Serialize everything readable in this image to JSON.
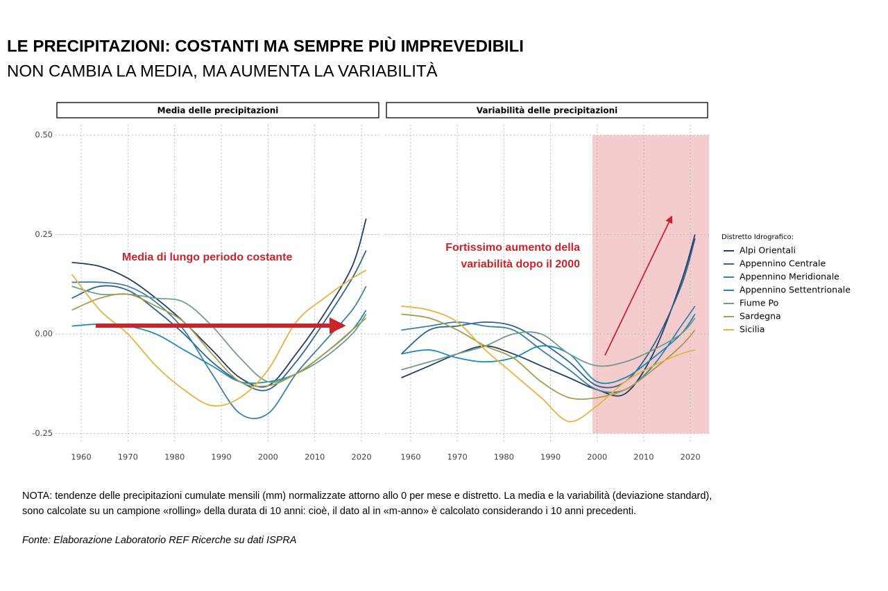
{
  "title": "LE PRECIPITAZIONI: COSTANTI MA SEMPRE PIÙ IMPREVEDIBILI",
  "subtitle": "NON CAMBIA LA MEDIA, MA AUMENTA LA VARIABILITÀ",
  "note": [
    "NOTA: tendenze delle precipitazioni cumulate mensili (mm) normalizzate attorno allo 0 per mese e distretto. La media e la variabilità (deviazione standard),",
    "sono calcolate su un campione «rolling» della durata di 10 anni: cioè, il dato al in «m-anno» è calcolato considerando i 10 anni precedenti."
  ],
  "source": "Fonte: Elaborazione Laboratorio REF Ricerche su dati ISPRA",
  "chart_data": [
    {
      "type": "line",
      "title": "Media delle precipitazioni",
      "legend_title": "Distretto Idrografico:",
      "annotation": [
        "Media di lungo periodo costante"
      ],
      "x": [
        1958,
        1964,
        1970,
        1976,
        1982,
        1988,
        1994,
        2000,
        2006,
        2012,
        2018,
        2021
      ],
      "xlim": [
        1954.5,
        2024
      ],
      "xticks": [
        1960,
        1970,
        1980,
        1990,
        2000,
        2010,
        2020
      ],
      "ylim": [
        -0.275,
        0.54
      ],
      "yticks": [
        {
          "value": -0.25,
          "label": "-0.25"
        },
        {
          "value": 0,
          "label": "0.00"
        },
        {
          "value": 0.25,
          "label": "0.25"
        },
        {
          "value": 0.5,
          "label": "0.50"
        }
      ],
      "grid": true,
      "series": [
        {
          "name": "Alpi Orientali",
          "color": "#1f3f66",
          "values": [
            0.18,
            0.17,
            0.14,
            0.09,
            0.03,
            -0.04,
            -0.11,
            -0.13,
            -0.05,
            0.05,
            0.17,
            0.29
          ]
        },
        {
          "name": "Appennino Centrale",
          "color": "#2c6391",
          "values": [
            0.09,
            0.12,
            0.11,
            0.06,
            0.0,
            -0.07,
            -0.12,
            -0.14,
            -0.07,
            0.03,
            0.14,
            0.21
          ]
        },
        {
          "name": "Appennino Meridionale",
          "color": "#3a7fa8",
          "values": [
            0.13,
            0.13,
            0.12,
            0.08,
            0.01,
            -0.1,
            -0.2,
            -0.2,
            -0.1,
            -0.02,
            0.06,
            0.12
          ]
        },
        {
          "name": "Appennino Settentrionale",
          "color": "#1a8ab5",
          "values": [
            0.02,
            0.025,
            0.02,
            0.0,
            -0.04,
            -0.08,
            -0.12,
            -0.12,
            -0.1,
            -0.05,
            0.01,
            0.06
          ]
        },
        {
          "name": "Fiume Po",
          "color": "#6f9c8c",
          "values": [
            0.12,
            0.1,
            0.1,
            0.09,
            0.08,
            0.02,
            -0.06,
            -0.12,
            -0.1,
            -0.06,
            0.0,
            0.05
          ]
        },
        {
          "name": "Sardegna",
          "color": "#a89c4c",
          "values": [
            0.06,
            0.09,
            0.1,
            0.07,
            0.03,
            -0.05,
            -0.12,
            -0.13,
            -0.1,
            -0.05,
            0.01,
            0.04
          ]
        },
        {
          "name": "Sicilia",
          "color": "#e9b23e",
          "values": [
            0.15,
            0.06,
            0.0,
            -0.08,
            -0.14,
            -0.18,
            -0.16,
            -0.09,
            0.03,
            0.09,
            0.14,
            0.16
          ]
        }
      ]
    },
    {
      "type": "line",
      "title": "Variabilità delle precipitazioni",
      "annotation": [
        "Fortissimo aumento della",
        "variabilità dopo il 2000"
      ],
      "shaded_region": [
        1999,
        2024
      ],
      "shaded_color": "#f4c6c8",
      "x": [
        1958,
        1964,
        1970,
        1976,
        1982,
        1988,
        1994,
        2000,
        2006,
        2012,
        2018,
        2021
      ],
      "xlim": [
        1954.5,
        2024
      ],
      "xticks": [
        1960,
        1970,
        1980,
        1990,
        2000,
        2010,
        2020
      ],
      "ylim": [
        -0.275,
        0.54
      ],
      "yticks": [
        -0.25,
        0,
        0.25,
        0.5
      ],
      "grid": true,
      "series": [
        {
          "name": "Alpi Orientali",
          "color": "#1f3f66",
          "values": [
            -0.11,
            -0.08,
            -0.05,
            -0.03,
            -0.05,
            -0.08,
            -0.11,
            -0.14,
            -0.15,
            -0.05,
            0.13,
            0.25
          ]
        },
        {
          "name": "Appennino Centrale",
          "color": "#2c6391",
          "values": [
            -0.05,
            0.01,
            0.02,
            0.03,
            0.02,
            -0.02,
            -0.07,
            -0.13,
            -0.12,
            -0.03,
            0.12,
            0.24
          ]
        },
        {
          "name": "Appennino Meridionale",
          "color": "#3a7fa8",
          "values": [
            0.01,
            0.02,
            0.03,
            0.02,
            0.01,
            -0.04,
            -0.09,
            -0.14,
            -0.14,
            -0.08,
            0.02,
            0.07
          ]
        },
        {
          "name": "Appennino Settentrionale",
          "color": "#1a8ab5",
          "values": [
            -0.05,
            -0.04,
            -0.06,
            -0.07,
            -0.06,
            -0.03,
            -0.05,
            -0.12,
            -0.11,
            -0.06,
            0.0,
            0.05
          ]
        },
        {
          "name": "Fiume Po",
          "color": "#6f9c8c",
          "values": [
            -0.09,
            -0.07,
            -0.05,
            -0.03,
            0.0,
            0.0,
            -0.05,
            -0.08,
            -0.07,
            -0.04,
            0.0,
            0.04
          ]
        },
        {
          "name": "Sardegna",
          "color": "#a89c4c",
          "values": [
            0.05,
            0.04,
            0.01,
            -0.03,
            -0.06,
            -0.12,
            -0.16,
            -0.16,
            -0.14,
            -0.09,
            -0.03,
            0.01
          ]
        },
        {
          "name": "Sicilia",
          "color": "#e9b23e",
          "values": [
            0.07,
            0.06,
            0.03,
            -0.04,
            -0.1,
            -0.16,
            -0.22,
            -0.18,
            -0.12,
            -0.08,
            -0.05,
            -0.04
          ]
        }
      ]
    }
  ]
}
